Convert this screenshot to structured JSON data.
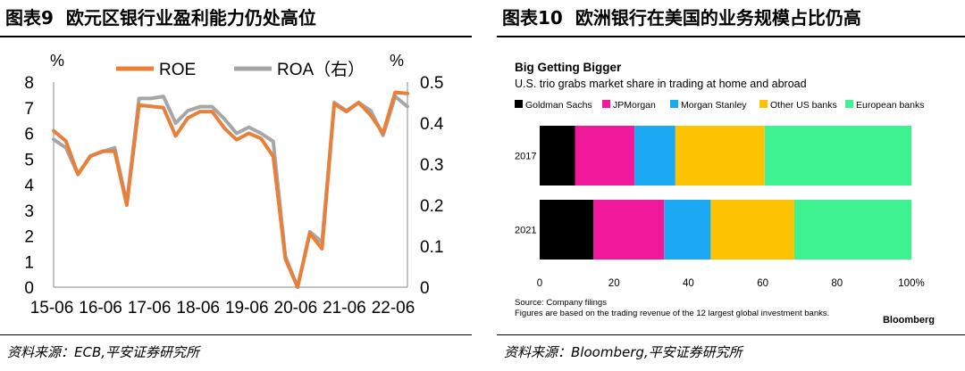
{
  "left": {
    "title_num": "图表9",
    "title": "欧元区银行业盈利能力仍处高位",
    "source_label": "资料来源：",
    "source": "ECB,平安证券研究所"
  },
  "right": {
    "title_num": "图表10",
    "title": "欧洲银行在美国的业务规模占比仍高",
    "source_label": "资料来源：",
    "source": "Bloomberg,平安证券研究所"
  },
  "chart_data": [
    {
      "type": "line",
      "x_tick_labels": [
        "15-06",
        "16-06",
        "17-06",
        "18-06",
        "19-06",
        "20-06",
        "21-06",
        "22-06"
      ],
      "y_left_unit": "%",
      "y_right_unit": "%",
      "y_left_lim": [
        0,
        8
      ],
      "y_right_lim": [
        0,
        0.5
      ],
      "y_left_ticks": [
        0,
        1,
        2,
        3,
        4,
        5,
        6,
        7,
        8
      ],
      "y_right_ticks": [
        "0",
        "0.1",
        "0.2",
        "0.3",
        "0.4",
        "0.5"
      ],
      "legend_position": "top",
      "grid": false,
      "series": [
        {
          "name": "ROE",
          "axis": "left",
          "color": "#E8803A",
          "values": [
            6.1,
            5.7,
            4.4,
            5.1,
            5.3,
            5.3,
            3.2,
            7.1,
            7.05,
            7.0,
            5.9,
            6.6,
            6.85,
            6.85,
            6.2,
            5.75,
            6.0,
            5.8,
            5.1,
            1.1,
            0.0,
            2.1,
            1.5,
            7.15,
            6.85,
            7.2,
            6.7,
            6.0,
            7.6,
            7.55
          ]
        },
        {
          "name": "ROA（右）",
          "axis": "right",
          "color": "#A6A6A6",
          "values": [
            0.36,
            0.34,
            0.275,
            0.32,
            0.33,
            0.34,
            0.205,
            0.46,
            0.46,
            0.465,
            0.4,
            0.43,
            0.44,
            0.44,
            0.41,
            0.375,
            0.39,
            0.375,
            0.355,
            0.075,
            0.0,
            0.135,
            0.11,
            0.45,
            0.43,
            0.45,
            0.43,
            0.37,
            0.465,
            0.44
          ]
        }
      ]
    },
    {
      "type": "bar",
      "orientation": "horizontal",
      "stacked": true,
      "title": "Big Getting Bigger",
      "subtitle": "U.S. trio grabs market share in trading at home and abroad",
      "categories": [
        "2017",
        "2021"
      ],
      "x_ticks": [
        "0",
        "20",
        "40",
        "60",
        "80",
        "100%"
      ],
      "xlim": [
        0,
        100
      ],
      "legend_position": "top",
      "grid": false,
      "series": [
        {
          "name": "Goldman Sachs",
          "color": "#000000",
          "values": [
            9.5,
            14.5
          ]
        },
        {
          "name": "JPMorgan",
          "color": "#F0199B",
          "values": [
            16,
            19
          ]
        },
        {
          "name": "Morgan Stanley",
          "color": "#1BA9F3",
          "values": [
            11,
            12.5
          ]
        },
        {
          "name": "Other US banks",
          "color": "#FDC201",
          "values": [
            24,
            22.5
          ]
        },
        {
          "name": "European banks",
          "color": "#3EF292",
          "values": [
            39.5,
            31.5
          ]
        }
      ],
      "notes": [
        "Source: Company filings",
        "Figures are based on the trading revenue of the 12 largest global investment banks."
      ],
      "brand": "Bloomberg"
    }
  ]
}
